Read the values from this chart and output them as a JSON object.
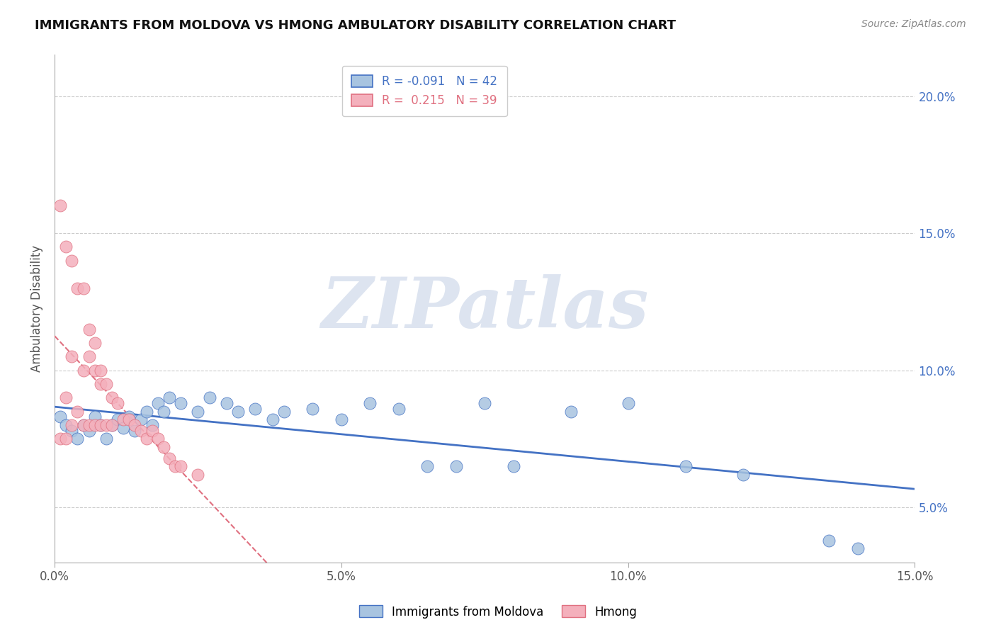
{
  "title": "IMMIGRANTS FROM MOLDOVA VS HMONG AMBULATORY DISABILITY CORRELATION CHART",
  "source": "Source: ZipAtlas.com",
  "ylabel": "Ambulatory Disability",
  "xlim": [
    0.0,
    0.15
  ],
  "ylim": [
    0.03,
    0.215
  ],
  "xticks": [
    0.0,
    0.05,
    0.1,
    0.15
  ],
  "yticks": [
    0.05,
    0.1,
    0.15,
    0.2
  ],
  "moldova_R": -0.091,
  "moldova_N": 42,
  "hmong_R": 0.215,
  "hmong_N": 39,
  "moldova_color": "#a8c4e0",
  "hmong_color": "#f4b0bc",
  "moldova_line_color": "#4472c4",
  "hmong_line_color": "#e07080",
  "watermark": "ZIPatlas",
  "watermark_color": "#dde4f0",
  "background_color": "#ffffff",
  "moldova_x": [
    0.001,
    0.002,
    0.003,
    0.004,
    0.005,
    0.006,
    0.007,
    0.008,
    0.009,
    0.01,
    0.011,
    0.012,
    0.013,
    0.014,
    0.015,
    0.016,
    0.017,
    0.018,
    0.019,
    0.02,
    0.022,
    0.025,
    0.027,
    0.03,
    0.032,
    0.035,
    0.038,
    0.04,
    0.045,
    0.05,
    0.055,
    0.06,
    0.065,
    0.07,
    0.075,
    0.08,
    0.09,
    0.1,
    0.11,
    0.12,
    0.135,
    0.14
  ],
  "moldova_y": [
    0.083,
    0.08,
    0.078,
    0.075,
    0.08,
    0.078,
    0.083,
    0.08,
    0.075,
    0.08,
    0.082,
    0.079,
    0.083,
    0.078,
    0.082,
    0.085,
    0.08,
    0.088,
    0.085,
    0.09,
    0.088,
    0.085,
    0.09,
    0.088,
    0.085,
    0.086,
    0.082,
    0.085,
    0.086,
    0.082,
    0.088,
    0.086,
    0.065,
    0.065,
    0.088,
    0.065,
    0.085,
    0.088,
    0.065,
    0.062,
    0.038,
    0.035
  ],
  "hmong_x": [
    0.001,
    0.001,
    0.002,
    0.002,
    0.002,
    0.003,
    0.003,
    0.003,
    0.004,
    0.004,
    0.005,
    0.005,
    0.005,
    0.006,
    0.006,
    0.006,
    0.007,
    0.007,
    0.007,
    0.008,
    0.008,
    0.008,
    0.009,
    0.009,
    0.01,
    0.01,
    0.011,
    0.012,
    0.013,
    0.014,
    0.015,
    0.016,
    0.017,
    0.018,
    0.019,
    0.02,
    0.021,
    0.022,
    0.025
  ],
  "hmong_y": [
    0.16,
    0.075,
    0.145,
    0.09,
    0.075,
    0.14,
    0.105,
    0.08,
    0.13,
    0.085,
    0.13,
    0.1,
    0.08,
    0.115,
    0.105,
    0.08,
    0.11,
    0.1,
    0.08,
    0.1,
    0.095,
    0.08,
    0.095,
    0.08,
    0.09,
    0.08,
    0.088,
    0.082,
    0.082,
    0.08,
    0.078,
    0.075,
    0.078,
    0.075,
    0.072,
    0.068,
    0.065,
    0.065,
    0.062
  ]
}
